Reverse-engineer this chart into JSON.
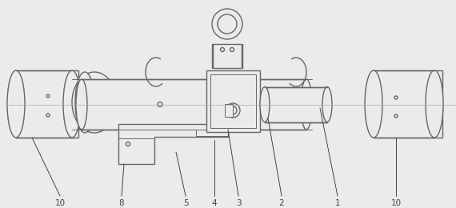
{
  "bg_color": "#ebebeb",
  "line_color": "#666666",
  "line_color_dark": "#444444",
  "lw_main": 1.0,
  "lw_thin": 0.7,
  "font_size": 7.5,
  "fig_w": 5.7,
  "fig_h": 2.6,
  "dpi": 100
}
